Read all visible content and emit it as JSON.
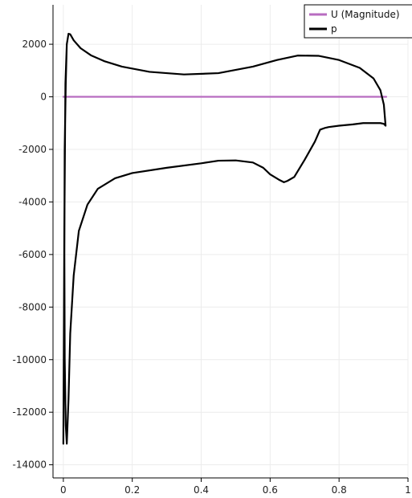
{
  "chart_data": {
    "type": "line",
    "title": "",
    "xlabel": "",
    "ylabel": "",
    "xlim": [
      -0.03,
      1.0
    ],
    "ylim": [
      -14500,
      3500
    ],
    "grid": true,
    "legend_position": "top-right",
    "x_ticks": [
      0,
      0.2,
      0.4,
      0.6,
      0.8,
      1
    ],
    "x_tick_labels": [
      "0",
      "0.2",
      "0.4",
      "0.6",
      "0.8",
      "1"
    ],
    "y_ticks": [
      2000,
      0,
      -2000,
      -4000,
      -6000,
      -8000,
      -10000,
      -12000,
      -14000
    ],
    "y_tick_labels": [
      "2000",
      "0",
      "-2000",
      "-4000",
      "-6000",
      "-8000",
      "-10000",
      "-12000",
      "-14000"
    ],
    "series": [
      {
        "name": "U (Magnitude)",
        "color": "#b86cc0",
        "x": [
          0.0,
          0.937
        ],
        "y": [
          0,
          0
        ]
      },
      {
        "name": "p",
        "color": "#000000",
        "x": [
          0.0,
          0.003,
          0.006,
          0.01,
          0.015,
          0.02,
          0.03,
          0.05,
          0.08,
          0.12,
          0.17,
          0.25,
          0.35,
          0.45,
          0.55,
          0.62,
          0.68,
          0.74,
          0.8,
          0.86,
          0.9,
          0.92,
          0.93,
          0.935,
          0.93,
          0.92,
          0.9,
          0.87,
          0.84,
          0.8,
          0.77,
          0.76,
          0.745,
          0.73,
          0.7,
          0.67,
          0.65,
          0.64,
          0.625,
          0.6,
          0.58,
          0.55,
          0.5,
          0.45,
          0.4,
          0.3,
          0.2,
          0.15,
          0.1,
          0.07,
          0.045,
          0.03,
          0.02,
          0.015,
          0.01,
          0.007,
          0.004,
          0.003,
          0.004,
          0.007,
          0.01
        ],
        "y": [
          -13200,
          -5000,
          500,
          2000,
          2400,
          2380,
          2150,
          1850,
          1580,
          1350,
          1150,
          950,
          850,
          900,
          1150,
          1400,
          1570,
          1560,
          1400,
          1100,
          700,
          250,
          -300,
          -1100,
          -1030,
          -1000,
          -1000,
          -1000,
          -1050,
          -1100,
          -1150,
          -1180,
          -1250,
          -1700,
          -2400,
          -3050,
          -3200,
          -3250,
          -3150,
          -2950,
          -2700,
          -2500,
          -2420,
          -2430,
          -2530,
          -2700,
          -2900,
          -3100,
          -3500,
          -4100,
          -5100,
          -6800,
          -9000,
          -11500,
          -13200,
          -12500,
          -10000,
          -6000,
          -2000,
          500,
          2000
        ]
      }
    ]
  },
  "legend": {
    "entries": [
      "U (Magnitude)",
      "p"
    ]
  }
}
